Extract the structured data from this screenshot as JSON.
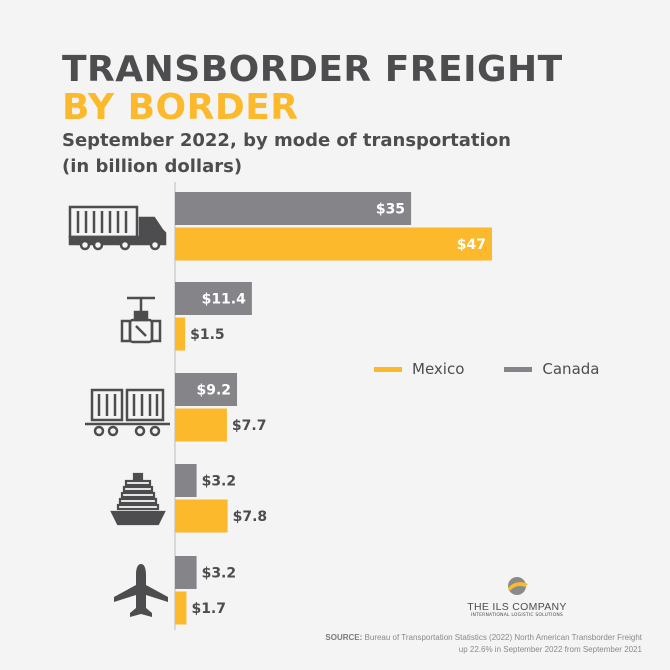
{
  "header": {
    "title_line1": "TRANSBORDER FREIGHT",
    "title_line2": "BY BORDER",
    "subtitle_line1": "September 2022, by mode of transportation",
    "subtitle_line2": "(in billion dollars)"
  },
  "colors": {
    "canada": "#858589",
    "mexico": "#fbb92b",
    "text": "#4d4d4f",
    "background": "#f4f4f4"
  },
  "chart_data": {
    "type": "bar",
    "orientation": "horizontal",
    "categories": [
      "truck-icon",
      "pipeline-icon",
      "rail-icon",
      "vessel-icon",
      "air-icon"
    ],
    "series": [
      {
        "name": "Canada",
        "values": [
          35,
          11.4,
          9.2,
          3.2,
          3.2
        ],
        "labels": [
          "$35",
          "$11.4",
          "$9.2",
          "$3.2",
          "$3.2"
        ]
      },
      {
        "name": "Mexico",
        "values": [
          47,
          1.5,
          7.7,
          7.8,
          1.7
        ],
        "labels": [
          "$47",
          "$1.5",
          "$7.7",
          "$7.8",
          "$1.7"
        ]
      }
    ],
    "xlim": [
      0,
      47
    ],
    "grid": false,
    "legend": "right"
  },
  "legend": {
    "mexico": "Mexico",
    "canada": "Canada"
  },
  "logo": {
    "name": "THE ILS COMPANY",
    "tagline": "INTERNATIONAL LOGISTIC SOLUTIONS"
  },
  "source": {
    "label": "SOURCE:",
    "text": "Bureau of Transportation Statistics (2022) North American Transborder Freight up 22.6% in September 2022 from September 2021"
  }
}
